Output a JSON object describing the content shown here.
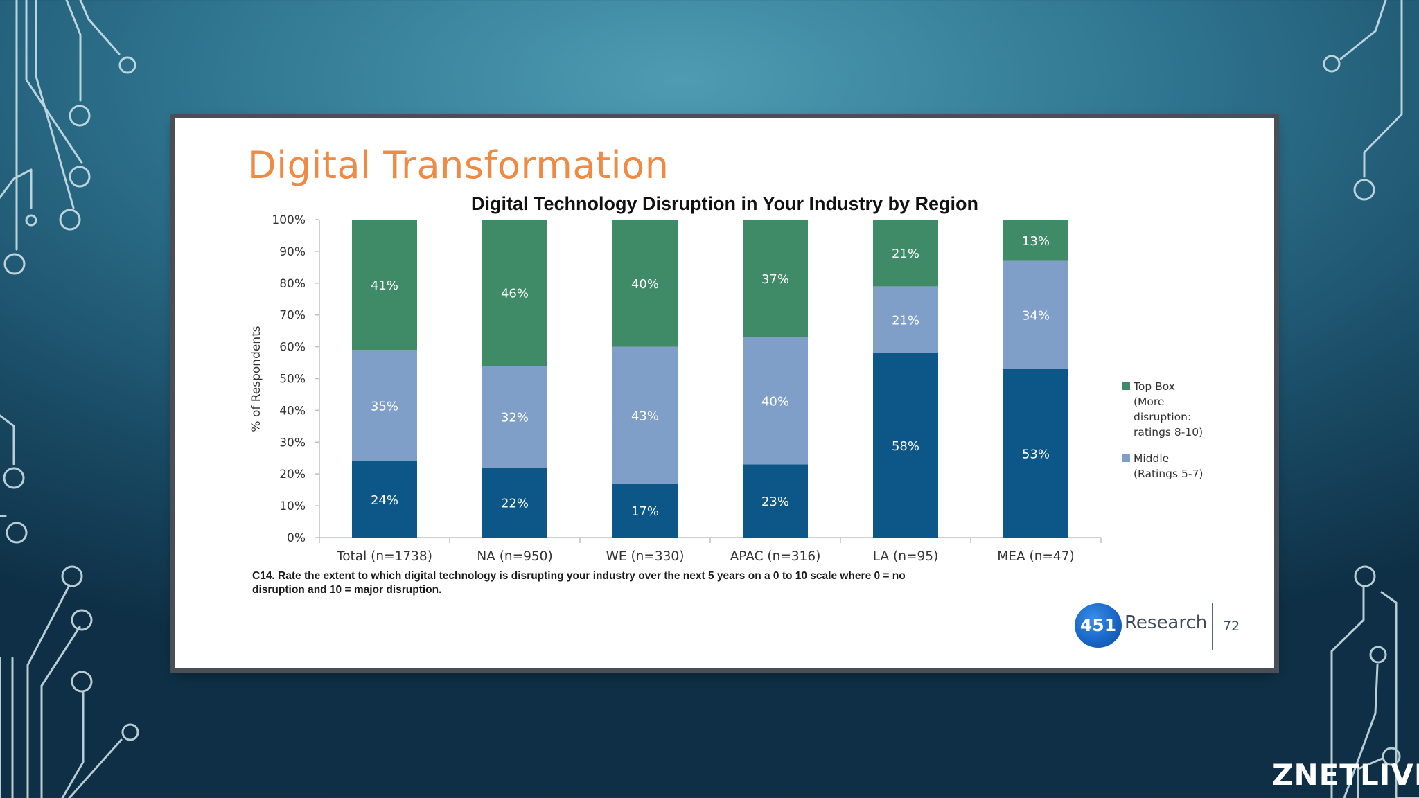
{
  "slide": {
    "title": "Digital Transformation",
    "footnote": "C14. Rate the extent to which digital technology is disrupting your industry over the next 5 years on a 0 to 10 scale where 0 = no disruption and 10 = major disruption.",
    "logo_number": "451",
    "logo_word": "Research",
    "page_number": "72"
  },
  "brand": {
    "name": "ZNETLIVE"
  },
  "colors": {
    "title_orange": "#ef8a45",
    "top_box": "#3f8a67",
    "middle": "#7f9ec8",
    "bottom": "#0c5688"
  },
  "chart_data": {
    "type": "bar",
    "stacked": true,
    "title": "Digital Technology Disruption in Your Industry by Region",
    "ylabel": "% of Respondents",
    "xlabel": "",
    "ylim": [
      0,
      100
    ],
    "y_ticks": [
      0,
      10,
      20,
      30,
      40,
      50,
      60,
      70,
      80,
      90,
      100
    ],
    "y_tick_labels": [
      "0%",
      "10%",
      "20%",
      "30%",
      "40%",
      "50%",
      "60%",
      "70%",
      "80%",
      "90%",
      "100%"
    ],
    "categories": [
      "Total (n=1738)",
      "NA (n=950)",
      "WE (n=330)",
      "APAC (n=316)",
      "LA (n=95)",
      "MEA (n=47)"
    ],
    "series": [
      {
        "values": [
          24,
          22,
          17,
          23,
          58,
          53
        ],
        "labels": [
          "24%",
          "22%",
          "17%",
          "23%",
          "58%",
          "53%"
        ],
        "color": "#0c5688"
      },
      {
        "name": "Middle (Ratings 5-7)",
        "values": [
          35,
          32,
          43,
          40,
          21,
          34
        ],
        "labels": [
          "35%",
          "32%",
          "43%",
          "40%",
          "21%",
          "34%"
        ],
        "color": "#7f9ec8"
      },
      {
        "name": "Top Box (More disruption: ratings 8-10)",
        "values": [
          41,
          46,
          40,
          37,
          21,
          13
        ],
        "labels": [
          "41%",
          "46%",
          "40%",
          "37%",
          "21%",
          "13%"
        ],
        "color": "#3f8a67"
      }
    ],
    "legend": {
      "position": "right",
      "items": [
        {
          "lines": [
            "Top Box",
            "(More",
            "disruption:",
            "ratings 8-10)"
          ],
          "color": "#3f8a67"
        },
        {
          "lines": [
            "Middle",
            "(Ratings 5-7)"
          ],
          "color": "#7f9ec8"
        }
      ]
    },
    "grid": false
  }
}
